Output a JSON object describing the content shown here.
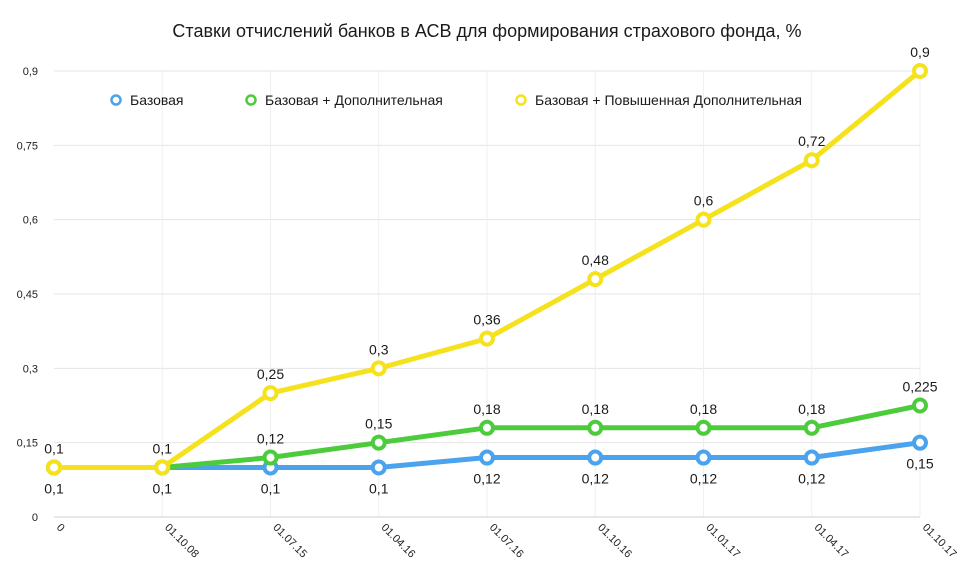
{
  "chart_data": {
    "type": "line",
    "title": "Ставки отчислений банков в АСВ для формирования страхового фонда, %",
    "xlabel": "",
    "ylabel": "",
    "categories": [
      "0",
      "01.10.08",
      "01.07.15",
      "01.04.16",
      "01.07.16",
      "01.10.16",
      "01.01.17",
      "01.04.17",
      "01.10.17"
    ],
    "ylim": [
      0,
      0.9
    ],
    "yticks": [
      0,
      0.15,
      0.3,
      0.45,
      0.6,
      0.75,
      0.9
    ],
    "ytick_labels": [
      "0",
      "0,15",
      "0,3",
      "0,45",
      "0,6",
      "0,75",
      "0,9"
    ],
    "grid": true,
    "legend_position": "top",
    "series": [
      {
        "name": "Базовая",
        "color": "#4aa3ec",
        "values": [
          0.1,
          0.1,
          0.1,
          0.1,
          0.12,
          0.12,
          0.12,
          0.12,
          0.15
        ],
        "labels": [
          "0,1",
          "0,1",
          "0,1",
          "0,1",
          "0,12",
          "0,12",
          "0,12",
          "0,12",
          "0,15"
        ],
        "label_position": "below"
      },
      {
        "name": "Базовая + Дополнительная",
        "color": "#4ccc3c",
        "values": [
          0.1,
          0.1,
          0.12,
          0.15,
          0.18,
          0.18,
          0.18,
          0.18,
          0.225
        ],
        "labels": [
          "",
          "",
          "0,12",
          "0,15",
          "0,18",
          "0,18",
          "0,18",
          "0,18",
          "0,225"
        ],
        "label_position": "above"
      },
      {
        "name": "Базовая + Повышенная Дополнительная",
        "color": "#f5e11c",
        "values": [
          0.1,
          0.1,
          0.25,
          0.3,
          0.36,
          0.48,
          0.6,
          0.72,
          0.9
        ],
        "labels": [
          "0,1",
          "0,1",
          "0,25",
          "0,3",
          "0,36",
          "0,48",
          "0,6",
          "0,72",
          "0,9"
        ],
        "label_position": "above"
      }
    ]
  }
}
